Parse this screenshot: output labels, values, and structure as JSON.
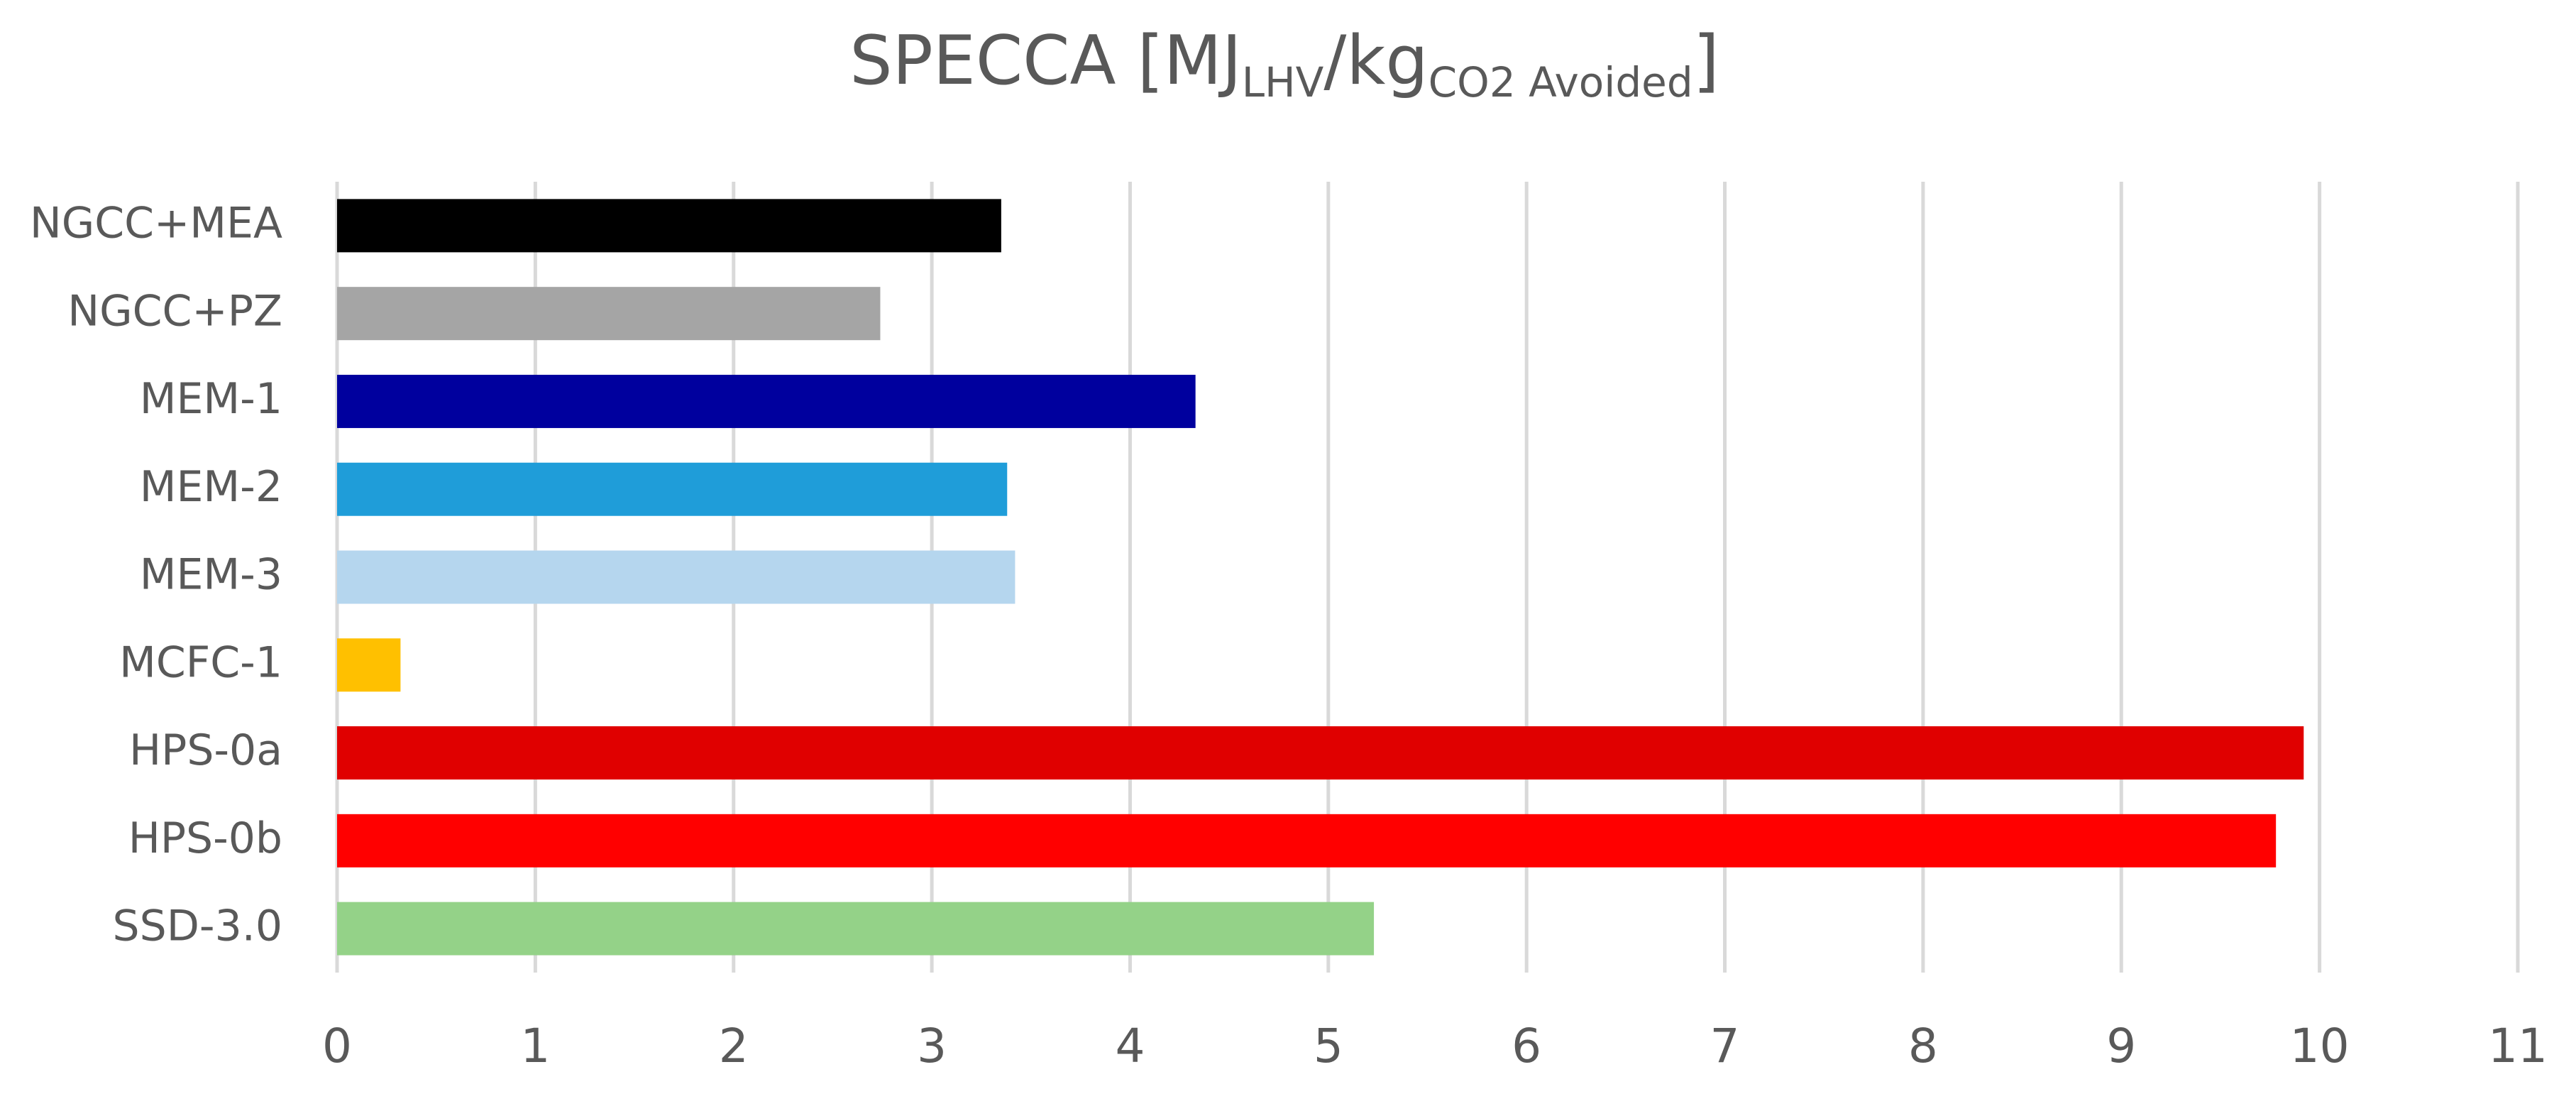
{
  "chart_data": {
    "type": "hbar",
    "title": [
      "SPECCA [MJ",
      "LHV",
      "/kg",
      "CO2 Avoided",
      "]"
    ],
    "categories": [
      "NGCC+MEA",
      "NGCC+PZ",
      "MEM-1",
      "MEM-2",
      "MEM-3",
      "MCFC-1",
      "HPS-0a",
      "HPS-0b",
      "SSD-3.0"
    ],
    "values": [
      3.35,
      2.74,
      4.33,
      3.38,
      3.42,
      0.32,
      9.92,
      9.78,
      5.23
    ],
    "colors": [
      "#000000",
      "#a5a5a5",
      "#00009e",
      "#1f9dd9",
      "#b5d6ee",
      "#ffc000",
      "#e00000",
      "#ff0000",
      "#94d288"
    ],
    "xlim": [
      0,
      11
    ],
    "xticks": [
      0,
      1,
      2,
      3,
      4,
      5,
      6,
      7,
      8,
      9,
      10,
      11
    ],
    "grid": true
  }
}
